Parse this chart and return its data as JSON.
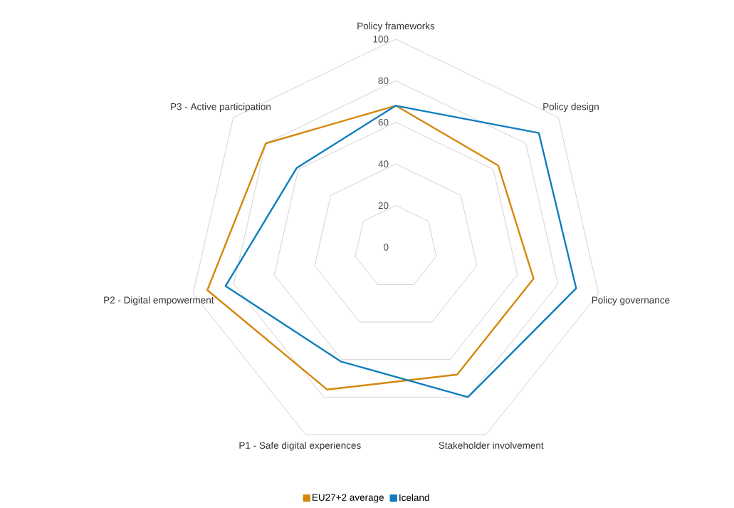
{
  "chart_data": {
    "type": "radar",
    "categories": [
      "Policy frameworks",
      "Policy design",
      "Policy governance",
      "Stakeholder involvement",
      "P1 - Safe digital experiences",
      "P2 - Digital empowerment",
      "P3 - Active participation"
    ],
    "series": [
      {
        "name": "EU27+2 average",
        "color": "#d4880c",
        "values": [
          68,
          63,
          68,
          68,
          76,
          93,
          80
        ]
      },
      {
        "name": "Iceland",
        "color": "#0f7dbd",
        "values": [
          68,
          88,
          89,
          80,
          61,
          84,
          61
        ]
      }
    ],
    "ylim": [
      0,
      100
    ],
    "yticks": [
      0,
      20,
      40,
      60,
      80,
      100
    ],
    "grid": true,
    "legend": "bottom"
  }
}
